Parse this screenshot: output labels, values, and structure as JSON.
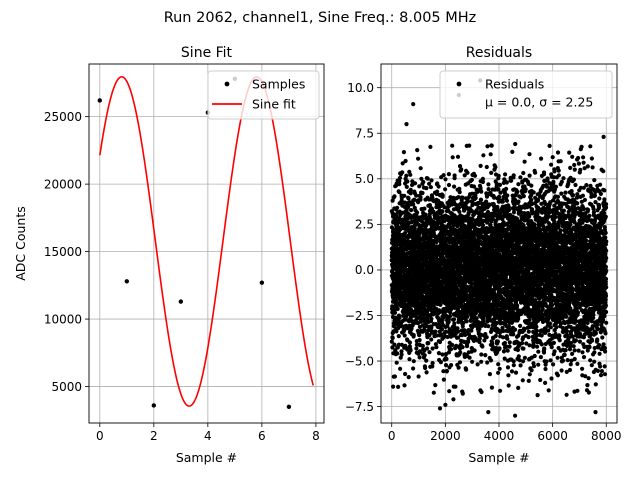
{
  "figure": {
    "suptitle": "Run 2062, channel1, Sine Freq.: 8.005 MHz"
  },
  "chart_data": [
    {
      "type": "line",
      "title": "Sine Fit",
      "xlabel": "Sample #",
      "ylabel": "ADC Counts",
      "xlim": [
        -0.4,
        8.3
      ],
      "ylim": [
        2300,
        28900
      ],
      "xticks": [
        "0",
        "2",
        "4",
        "6",
        "8"
      ],
      "xtick_values": [
        0,
        2,
        4,
        6,
        8
      ],
      "yticks": [
        "5000",
        "10000",
        "15000",
        "20000",
        "25000"
      ],
      "ytick_values": [
        5000,
        10000,
        15000,
        20000,
        25000
      ],
      "grid": true,
      "legend_position": "upper-right",
      "series": [
        {
          "name": "Samples",
          "kind": "scatter",
          "color": "#000000",
          "x": [
            0,
            1,
            2,
            3,
            4,
            5,
            6,
            7
          ],
          "y": [
            26200,
            12800,
            3600,
            11300,
            25300,
            27800,
            12700,
            3500
          ]
        },
        {
          "name": "Sine fit",
          "kind": "line",
          "color": "#ff0000",
          "model": {
            "offset": 15750,
            "amplitude": 12200,
            "cycles_per_sample": 0.2002,
            "phase_rad": 1.02,
            "x_start": 0,
            "x_end": 7.9
          }
        }
      ]
    },
    {
      "type": "scatter",
      "title": "Residuals",
      "xlabel": "Sample #",
      "ylabel": "",
      "xlim": [
        -400,
        8400
      ],
      "ylim": [
        -8.4,
        11.3
      ],
      "xticks": [
        "0",
        "2000",
        "4000",
        "6000",
        "8000"
      ],
      "xtick_values": [
        0,
        2000,
        4000,
        6000,
        8000
      ],
      "yticks": [
        "−7.5",
        "−5.0",
        "−2.5",
        "0.0",
        "2.5",
        "5.0",
        "7.5",
        "10.0"
      ],
      "ytick_values": [
        -7.5,
        -5.0,
        -2.5,
        0.0,
        2.5,
        5.0,
        7.5,
        10.0
      ],
      "grid": true,
      "legend_position": "upper-right",
      "series": [
        {
          "name": "Residuals",
          "kind": "scatter",
          "color": "#000000",
          "legend_stats": "μ = 0.0, σ = 2.25",
          "n_points": 8000,
          "mean": 0.0,
          "std": 2.25,
          "x_range": [
            0,
            8000
          ],
          "outliers": [
            {
              "x": 3300,
              "y": 10.4
            },
            {
              "x": 2500,
              "y": 9.6
            },
            {
              "x": 800,
              "y": 9.1
            },
            {
              "x": 550,
              "y": 8.0
            },
            {
              "x": 7900,
              "y": 7.3
            },
            {
              "x": 4600,
              "y": -8.0
            },
            {
              "x": 3600,
              "y": -7.8
            },
            {
              "x": 7600,
              "y": -7.8
            },
            {
              "x": 1800,
              "y": -7.6
            },
            {
              "x": 2000,
              "y": -7.4
            },
            {
              "x": 2300,
              "y": -7.1
            }
          ]
        }
      ]
    }
  ]
}
